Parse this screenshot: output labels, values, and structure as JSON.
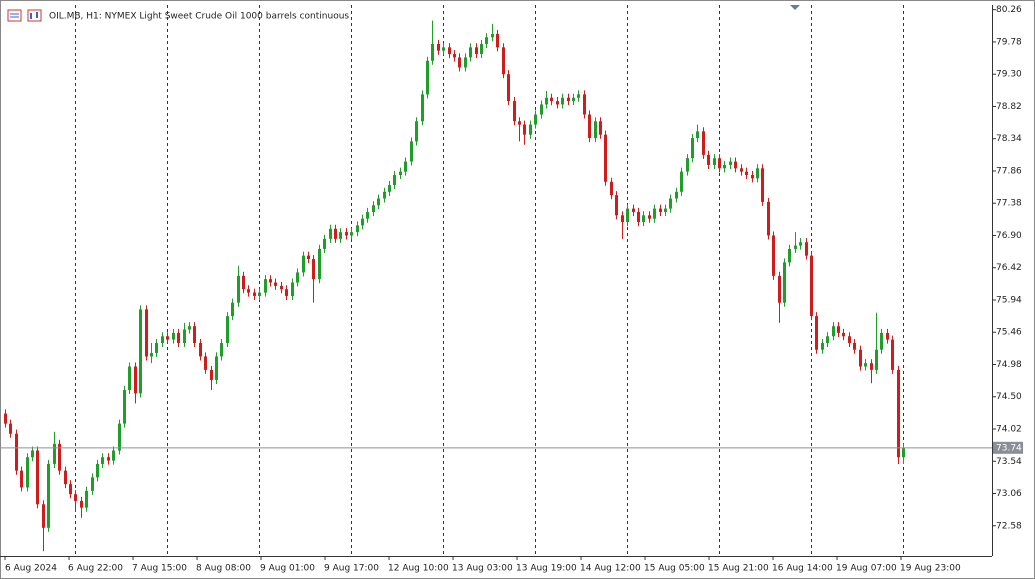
{
  "chart_data": {
    "type": "candlestick",
    "title": "OIL.MB, H1:  NYMEX Light Sweet Crude Oil 1000 barrels continuous",
    "up_color": "#1f9e2a",
    "down_color": "#d11c1c",
    "ylim": [
      72.13,
      80.33
    ],
    "yticks": [
      80.26,
      79.78,
      {
        "value": 79.3,
        "label": "79.30"
      },
      78.82,
      78.34,
      77.86,
      77.38,
      {
        "value": 76.9,
        "label": "76.90"
      },
      76.42,
      75.94,
      75.46,
      74.98,
      {
        "value": 74.5,
        "label": "74.50"
      },
      74.02,
      73.54,
      73.06,
      72.58
    ],
    "current_price": 73.74,
    "x_labels": [
      "6 Aug 2024",
      "6 Aug 22:00",
      "7 Aug 15:00",
      "8 Aug 08:00",
      "9 Aug 01:00",
      "9 Aug 17:00",
      "12 Aug 10:00",
      "13 Aug 03:00",
      "13 Aug 19:00",
      "14 Aug 12:00",
      "15 Aug 05:00",
      "15 Aug 21:00",
      "16 Aug 14:00",
      "19 Aug 07:00",
      "19 Aug 23:00"
    ],
    "ohlc": [
      [
        74.25,
        74.31,
        74.04,
        74.1
      ],
      [
        74.1,
        74.16,
        73.89,
        73.95
      ],
      [
        73.95,
        74.01,
        73.34,
        73.4
      ],
      [
        73.4,
        73.46,
        73.09,
        73.15
      ],
      [
        73.15,
        73.66,
        73.09,
        73.6
      ],
      [
        73.6,
        73.76,
        73.54,
        73.7
      ],
      [
        73.7,
        73.76,
        72.84,
        72.9
      ],
      [
        72.9,
        72.96,
        72.2,
        72.55
      ],
      [
        72.55,
        73.56,
        72.49,
        73.5
      ],
      [
        73.5,
        73.98,
        73.44,
        73.8
      ],
      [
        73.8,
        73.86,
        73.34,
        73.4
      ],
      [
        73.4,
        73.46,
        73.14,
        73.2
      ],
      [
        73.2,
        73.26,
        72.99,
        73.05
      ],
      [
        73.05,
        73.11,
        72.8,
        72.95
      ],
      [
        72.95,
        73.01,
        72.7,
        72.85
      ],
      [
        72.85,
        73.16,
        72.79,
        73.1
      ],
      [
        73.1,
        73.36,
        73.04,
        73.3
      ],
      [
        73.3,
        73.56,
        73.24,
        73.5
      ],
      [
        73.5,
        73.66,
        73.44,
        73.6
      ],
      [
        73.6,
        73.66,
        73.49,
        73.55
      ],
      [
        73.55,
        73.76,
        73.49,
        73.7
      ],
      [
        73.7,
        74.16,
        73.64,
        74.1
      ],
      [
        74.1,
        74.66,
        74.04,
        74.6
      ],
      [
        74.6,
        75.01,
        74.54,
        74.95
      ],
      [
        74.95,
        75.01,
        74.4,
        74.55
      ],
      [
        74.55,
        75.86,
        74.49,
        75.8
      ],
      [
        75.8,
        75.86,
        75.04,
        75.1
      ],
      [
        75.1,
        75.3,
        75.0,
        75.15
      ],
      [
        75.15,
        75.36,
        75.09,
        75.3
      ],
      [
        75.3,
        75.46,
        75.24,
        75.4
      ],
      [
        75.4,
        75.46,
        75.29,
        75.35
      ],
      [
        75.35,
        75.51,
        75.29,
        75.45
      ],
      [
        75.45,
        75.51,
        75.24,
        75.3
      ],
      [
        75.3,
        75.6,
        75.24,
        75.5
      ],
      [
        75.5,
        75.61,
        75.44,
        75.55
      ],
      [
        75.55,
        75.61,
        75.24,
        75.3
      ],
      [
        75.3,
        75.36,
        75.04,
        75.1
      ],
      [
        75.1,
        75.16,
        74.84,
        74.9
      ],
      [
        74.9,
        74.96,
        74.6,
        74.75
      ],
      [
        74.75,
        75.16,
        74.69,
        75.1
      ],
      [
        75.1,
        75.36,
        75.04,
        75.3
      ],
      [
        75.3,
        75.76,
        75.24,
        75.7
      ],
      [
        75.7,
        75.96,
        75.64,
        75.9
      ],
      [
        75.9,
        76.45,
        75.84,
        76.3
      ],
      [
        76.3,
        76.36,
        76.04,
        76.1
      ],
      [
        76.1,
        76.16,
        75.99,
        76.05
      ],
      [
        76.05,
        76.11,
        75.94,
        76.0
      ],
      [
        76.0,
        76.11,
        75.94,
        76.05
      ],
      [
        76.05,
        76.31,
        75.99,
        76.25
      ],
      [
        76.25,
        76.31,
        76.14,
        76.2
      ],
      [
        76.2,
        76.26,
        76.09,
        76.15
      ],
      [
        76.15,
        76.21,
        76.04,
        76.1
      ],
      [
        76.1,
        76.16,
        75.94,
        76.0
      ],
      [
        76.0,
        76.26,
        75.94,
        76.2
      ],
      [
        76.2,
        76.41,
        76.14,
        76.35
      ],
      [
        76.35,
        76.66,
        76.29,
        76.6
      ],
      [
        76.6,
        76.66,
        76.49,
        76.55
      ],
      [
        76.55,
        76.61,
        75.9,
        76.25
      ],
      [
        76.25,
        76.76,
        76.19,
        76.7
      ],
      [
        76.7,
        76.91,
        76.64,
        76.85
      ],
      [
        76.85,
        77.06,
        76.79,
        77.0
      ],
      [
        77.0,
        77.06,
        76.79,
        76.85
      ],
      [
        76.85,
        77.01,
        76.79,
        76.95
      ],
      [
        76.95,
        77.01,
        76.84,
        76.9
      ],
      [
        76.9,
        77.01,
        76.84,
        76.95
      ],
      [
        76.95,
        77.11,
        76.89,
        77.05
      ],
      [
        77.05,
        77.21,
        76.99,
        77.15
      ],
      [
        77.15,
        77.31,
        77.09,
        77.25
      ],
      [
        77.25,
        77.41,
        77.19,
        77.35
      ],
      [
        77.35,
        77.51,
        77.29,
        77.45
      ],
      [
        77.45,
        77.61,
        77.39,
        77.55
      ],
      [
        77.55,
        77.71,
        77.49,
        77.65
      ],
      [
        77.65,
        77.86,
        77.59,
        77.8
      ],
      [
        77.8,
        77.91,
        77.74,
        77.85
      ],
      [
        77.85,
        78.06,
        77.79,
        78.0
      ],
      [
        78.0,
        78.36,
        77.94,
        78.3
      ],
      [
        78.3,
        78.66,
        78.24,
        78.6
      ],
      [
        78.6,
        79.06,
        78.54,
        79.0
      ],
      [
        79.0,
        79.56,
        78.94,
        79.5
      ],
      [
        79.5,
        80.1,
        79.44,
        79.75
      ],
      [
        79.75,
        79.81,
        79.59,
        79.65
      ],
      [
        79.65,
        79.76,
        79.59,
        79.7
      ],
      [
        79.7,
        79.76,
        79.54,
        79.6
      ],
      [
        79.6,
        79.66,
        79.49,
        79.55
      ],
      [
        79.55,
        79.61,
        79.34,
        79.4
      ],
      [
        79.4,
        79.61,
        79.34,
        79.55
      ],
      [
        79.55,
        79.76,
        79.49,
        79.7
      ],
      [
        79.7,
        79.76,
        79.54,
        79.6
      ],
      [
        79.6,
        79.81,
        79.54,
        79.75
      ],
      [
        79.75,
        79.91,
        79.69,
        79.85
      ],
      [
        79.85,
        80.05,
        79.79,
        79.9
      ],
      [
        79.9,
        79.96,
        79.64,
        79.7
      ],
      [
        79.7,
        79.76,
        79.24,
        79.3
      ],
      [
        79.3,
        79.36,
        78.84,
        78.9
      ],
      [
        78.9,
        78.96,
        78.54,
        78.6
      ],
      [
        78.6,
        78.66,
        78.3,
        78.55
      ],
      [
        78.55,
        78.61,
        78.25,
        78.4
      ],
      [
        78.4,
        78.61,
        78.34,
        78.55
      ],
      [
        78.55,
        78.76,
        78.49,
        78.7
      ],
      [
        78.7,
        78.91,
        78.64,
        78.85
      ],
      [
        78.85,
        79.05,
        78.79,
        78.95
      ],
      [
        78.95,
        79.01,
        78.84,
        78.9
      ],
      [
        78.9,
        78.96,
        78.79,
        78.85
      ],
      [
        78.85,
        79.01,
        78.79,
        78.95
      ],
      [
        78.95,
        79.01,
        78.84,
        78.9
      ],
      [
        78.9,
        79.01,
        78.84,
        78.95
      ],
      [
        78.95,
        79.06,
        78.89,
        79.0
      ],
      [
        79.0,
        79.06,
        78.64,
        78.7
      ],
      [
        78.7,
        78.76,
        78.29,
        78.35
      ],
      [
        78.35,
        78.66,
        78.29,
        78.6
      ],
      [
        78.6,
        78.66,
        78.34,
        78.4
      ],
      [
        78.4,
        78.46,
        77.64,
        77.7
      ],
      [
        77.7,
        77.76,
        77.44,
        77.5
      ],
      [
        77.5,
        77.56,
        77.14,
        77.2
      ],
      [
        77.2,
        77.26,
        76.85,
        77.1
      ],
      [
        77.1,
        77.36,
        77.04,
        77.3
      ],
      [
        77.3,
        77.36,
        77.19,
        77.25
      ],
      [
        77.25,
        77.31,
        77.04,
        77.1
      ],
      [
        77.1,
        77.26,
        77.04,
        77.2
      ],
      [
        77.2,
        77.26,
        77.09,
        77.15
      ],
      [
        77.15,
        77.36,
        77.09,
        77.3
      ],
      [
        77.3,
        77.36,
        77.19,
        77.25
      ],
      [
        77.25,
        77.36,
        77.19,
        77.3
      ],
      [
        77.3,
        77.51,
        77.24,
        77.45
      ],
      [
        77.45,
        77.61,
        77.39,
        77.55
      ],
      [
        77.55,
        77.91,
        77.49,
        77.85
      ],
      [
        77.85,
        78.11,
        77.79,
        78.05
      ],
      [
        78.05,
        78.41,
        77.99,
        78.35
      ],
      [
        78.35,
        78.55,
        78.29,
        78.45
      ],
      [
        78.45,
        78.51,
        78.04,
        78.1
      ],
      [
        78.1,
        78.16,
        77.89,
        77.95
      ],
      [
        77.95,
        78.11,
        77.89,
        78.05
      ],
      [
        78.05,
        78.11,
        77.84,
        77.9
      ],
      [
        77.9,
        78.01,
        77.84,
        77.95
      ],
      [
        77.95,
        78.06,
        77.89,
        78.0
      ],
      [
        78.0,
        78.06,
        77.84,
        77.9
      ],
      [
        77.9,
        77.96,
        77.79,
        77.85
      ],
      [
        77.85,
        77.91,
        77.74,
        77.8
      ],
      [
        77.8,
        77.86,
        77.69,
        77.75
      ],
      [
        77.75,
        77.96,
        77.69,
        77.9
      ],
      [
        77.9,
        77.96,
        77.34,
        77.4
      ],
      [
        77.4,
        77.46,
        76.84,
        76.9
      ],
      [
        76.9,
        76.96,
        76.24,
        76.3
      ],
      [
        76.3,
        76.36,
        75.6,
        75.9
      ],
      [
        75.9,
        76.56,
        75.84,
        76.5
      ],
      [
        76.5,
        76.76,
        76.44,
        76.7
      ],
      [
        76.7,
        76.95,
        76.64,
        76.75
      ],
      [
        76.75,
        76.86,
        76.69,
        76.8
      ],
      [
        76.8,
        76.86,
        76.54,
        76.6
      ],
      [
        76.6,
        76.66,
        75.64,
        75.7
      ],
      [
        75.7,
        75.76,
        75.14,
        75.2
      ],
      [
        75.2,
        75.36,
        75.14,
        75.3
      ],
      [
        75.3,
        75.46,
        75.24,
        75.4
      ],
      [
        75.4,
        75.61,
        75.34,
        75.55
      ],
      [
        75.55,
        75.61,
        75.39,
        75.45
      ],
      [
        75.45,
        75.51,
        75.34,
        75.4
      ],
      [
        75.4,
        75.46,
        75.24,
        75.3
      ],
      [
        75.3,
        75.36,
        75.14,
        75.2
      ],
      [
        75.2,
        75.26,
        74.89,
        74.95
      ],
      [
        74.95,
        75.06,
        74.89,
        75.0
      ],
      [
        75.0,
        75.06,
        74.7,
        74.9
      ],
      [
        74.9,
        75.75,
        74.84,
        75.2
      ],
      [
        75.2,
        75.51,
        75.14,
        75.45
      ],
      [
        75.45,
        75.51,
        75.29,
        75.35
      ],
      [
        75.35,
        75.41,
        74.84,
        74.9
      ],
      [
        74.9,
        74.96,
        73.5,
        73.6
      ],
      [
        73.6,
        73.8,
        73.5,
        73.74
      ]
    ]
  }
}
